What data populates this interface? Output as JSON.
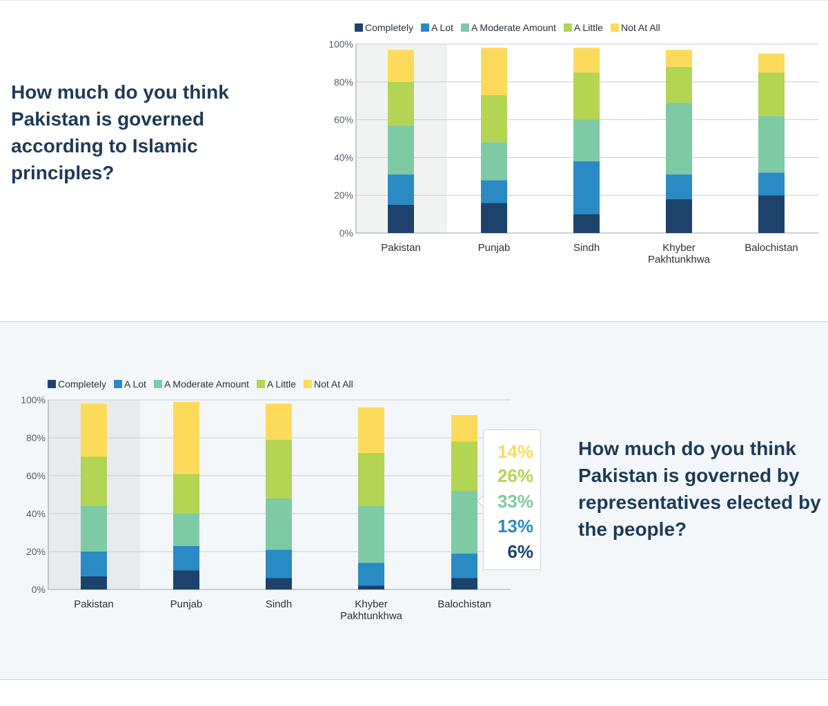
{
  "colors": {
    "completely": "#1d426b",
    "a_lot": "#2a8ac4",
    "a_moderate_amount": "#7ecaa4",
    "a_little": "#b4d453",
    "not_at_all": "#fcdb5b",
    "question_text": "#1e3a55"
  },
  "section1": {
    "question": "How much do you think Pakistan is governed according to Islamic principles?"
  },
  "section2": {
    "question": "How much do you think Pakistan is governed by representatives elected by the people?",
    "tooltip": {
      "category": "Balochistan",
      "values": [
        "14%",
        "26%",
        "33%",
        "13%",
        "6%"
      ]
    }
  },
  "chart_data": [
    {
      "type": "bar",
      "stacked": true,
      "categories": [
        "Pakistan",
        "Punjab",
        "Sindh",
        "Khyber Pakhtunkhwa",
        "Balochistan"
      ],
      "category_labels": [
        [
          "Pakistan"
        ],
        [
          "Punjab"
        ],
        [
          "Sindh"
        ],
        [
          "Khyber",
          "Pakhtunkhwa"
        ],
        [
          "Balochistan"
        ]
      ],
      "series": [
        {
          "name": "Completely",
          "values": [
            15,
            16,
            10,
            18,
            20
          ]
        },
        {
          "name": "A Lot",
          "values": [
            16,
            12,
            28,
            13,
            12
          ]
        },
        {
          "name": "A Moderate Amount",
          "values": [
            26,
            20,
            22,
            38,
            30
          ]
        },
        {
          "name": "A Little",
          "values": [
            23,
            25,
            25,
            19,
            23
          ]
        },
        {
          "name": "Not At All",
          "values": [
            17,
            25,
            13,
            9,
            10
          ]
        }
      ],
      "ylim": [
        0,
        100
      ],
      "yticks": [
        "0%",
        "20%",
        "40%",
        "60%",
        "80%",
        "100%"
      ],
      "grid": true,
      "legend": "top",
      "highlighted_category": "Pakistan"
    },
    {
      "type": "bar",
      "stacked": true,
      "categories": [
        "Pakistan",
        "Punjab",
        "Sindh",
        "Khyber Pakhtunkhwa",
        "Balochistan"
      ],
      "category_labels": [
        [
          "Pakistan"
        ],
        [
          "Punjab"
        ],
        [
          "Sindh"
        ],
        [
          "Khyber",
          "Pakhtunkhwa"
        ],
        [
          "Balochistan"
        ]
      ],
      "series": [
        {
          "name": "Completely",
          "values": [
            7,
            10,
            6,
            2,
            6
          ]
        },
        {
          "name": "A Lot",
          "values": [
            13,
            13,
            15,
            12,
            13
          ]
        },
        {
          "name": "A Moderate Amount",
          "values": [
            24,
            17,
            27,
            30,
            33
          ]
        },
        {
          "name": "A Little",
          "values": [
            26,
            21,
            31,
            28,
            26
          ]
        },
        {
          "name": "Not At All",
          "values": [
            28,
            38,
            19,
            24,
            14
          ]
        }
      ],
      "ylim": [
        0,
        100
      ],
      "yticks": [
        "0%",
        "20%",
        "40%",
        "60%",
        "80%",
        "100%"
      ],
      "grid": true,
      "legend": "top",
      "highlighted_category": "Pakistan"
    }
  ]
}
